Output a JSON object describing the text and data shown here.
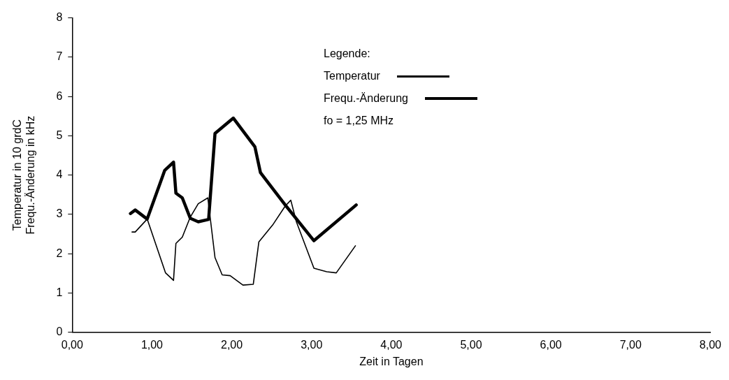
{
  "chart_data": {
    "type": "line",
    "xlabel": "Zeit in Tagen",
    "ylabel": "Temperatur in 10 grdC\nFrequ.-Änderung in kHz",
    "legend_title": "Legende:",
    "annotations": [
      "fo = 1,25 MHz"
    ],
    "xlim": [
      0,
      8
    ],
    "xticks": [
      {
        "value": 0,
        "label": "0,00"
      },
      {
        "value": 1,
        "label": "1,00"
      },
      {
        "value": 2,
        "label": "2,00"
      },
      {
        "value": 3,
        "label": "3,00"
      },
      {
        "value": 4,
        "label": "4,00"
      },
      {
        "value": 5,
        "label": "5,00"
      },
      {
        "value": 6,
        "label": "6,00"
      },
      {
        "value": 7,
        "label": "7,00"
      },
      {
        "value": 8,
        "label": "8,00"
      }
    ],
    "ylim": [
      0,
      8
    ],
    "yticks": [
      0,
      1,
      2,
      3,
      4,
      5,
      6,
      7,
      8
    ],
    "grid": false,
    "legend": "top",
    "marker": "none",
    "line_style": "solid",
    "series": [
      {
        "name": "Temperatur",
        "color": "#000000",
        "x": [
          0.75,
          0.79,
          0.94,
          1.17,
          1.27,
          1.3,
          1.38,
          1.48,
          1.58,
          1.7,
          1.79,
          1.88,
          1.98,
          2.14,
          2.27,
          2.34,
          2.52,
          2.67,
          2.74,
          2.81,
          3.03,
          3.19,
          3.31,
          3.55
        ],
        "values": [
          2.55,
          2.55,
          2.88,
          1.51,
          1.32,
          2.26,
          2.42,
          2.93,
          3.27,
          3.42,
          1.9,
          1.46,
          1.44,
          1.2,
          1.22,
          2.3,
          2.75,
          3.21,
          3.36,
          2.81,
          1.63,
          1.54,
          1.51,
          2.2
        ]
      },
      {
        "name": "Frequ.-Änderung",
        "color": "#000000",
        "x": [
          0.73,
          0.79,
          0.94,
          1.16,
          1.27,
          1.3,
          1.38,
          1.48,
          1.58,
          1.71,
          1.79,
          2.02,
          2.29,
          2.36,
          2.67,
          3.03,
          3.56
        ],
        "values": [
          3.02,
          3.11,
          2.88,
          4.12,
          4.33,
          3.54,
          3.42,
          2.9,
          2.81,
          2.87,
          5.06,
          5.45,
          4.72,
          4.06,
          3.24,
          2.33,
          3.24
        ]
      }
    ]
  }
}
